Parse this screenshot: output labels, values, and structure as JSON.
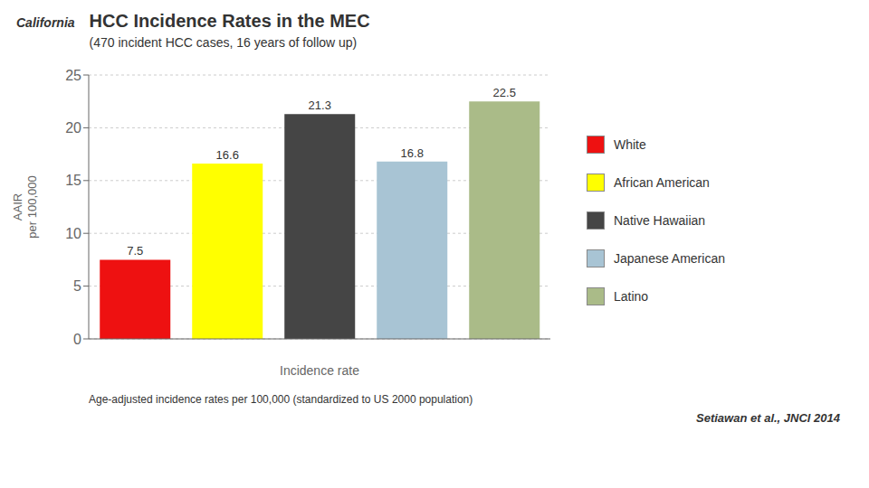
{
  "chart_data": {
    "type": "bar",
    "title": "HCC Incidence Rates in the MEC",
    "subtitle": "(470 incident HCC cases, 16 years of follow up)",
    "categories": [
      "White",
      "African American",
      "Native Hawaiian",
      "Japanese American",
      "Latino"
    ],
    "values": [
      7.5,
      16.6,
      21.3,
      16.8,
      22.5
    ],
    "colors": [
      "#EE1111",
      "#FFFF00",
      "#454545",
      "#A8C4D4",
      "#AABB88"
    ],
    "xlabel": "Incidence rate",
    "ylabel": "AAIR\nper 100,000",
    "ylim": [
      0,
      25
    ],
    "yticks": [
      0,
      5,
      10,
      15,
      20,
      25
    ],
    "grid": true,
    "legend": "right",
    "data_labels": true,
    "tick_labels": "y",
    "annotations": [
      "California",
      "Age-adjusted incidence rates per 100,000 (standardized to US 2000 population)",
      "Setiawan et al., JNCI 2014"
    ]
  }
}
